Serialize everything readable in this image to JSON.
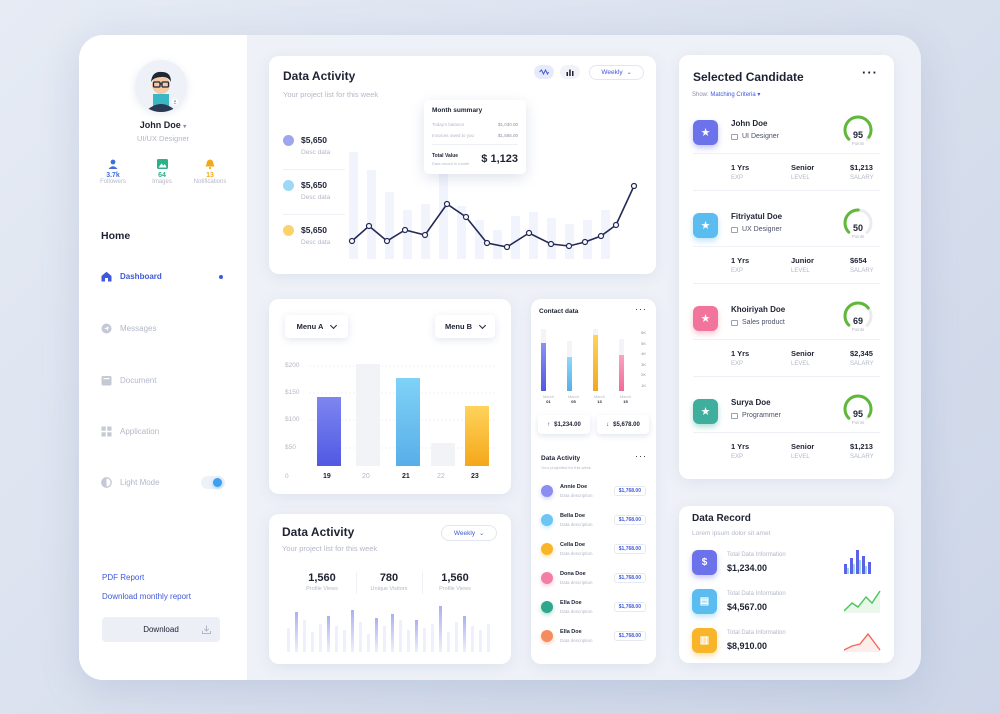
{
  "profile": {
    "name": "John Doe",
    "role": "UI/UX Designer"
  },
  "stats": [
    {
      "value": "3.7k",
      "label": "Followers",
      "icon": "user-icon",
      "color": "#3f6fd8"
    },
    {
      "value": "64",
      "label": "Images",
      "icon": "image-icon",
      "color": "#2bb08a"
    },
    {
      "value": "13",
      "label": "Notifications",
      "icon": "bell-icon",
      "color": "#f2a91b"
    }
  ],
  "nav": {
    "heading": "Home",
    "items": [
      {
        "label": "Dashboard"
      },
      {
        "label": "Messages"
      },
      {
        "label": "Document"
      },
      {
        "label": "Application"
      },
      {
        "label": "Light Mode"
      }
    ]
  },
  "footer": {
    "pdf": "PDF Report",
    "download_monthly": "Download monthly report",
    "download_btn": "Download"
  },
  "activity": {
    "title": "Data Activity",
    "subtitle": "Your project list for this week",
    "period": "Weekly",
    "items": [
      {
        "value": "$5,650",
        "label": "Desc data",
        "color": "#9ea6ef"
      },
      {
        "value": "$5,650",
        "label": "Desc data",
        "color": "#9fd8f5"
      },
      {
        "value": "$5,650",
        "label": "Desc data",
        "color": "#fbd36a"
      }
    ],
    "summary": {
      "title": "Month summary",
      "rows": [
        {
          "label": "Today's balance",
          "value": "$1,030.00"
        },
        {
          "label": "Invoices owed to you",
          "value": "$1,565.00"
        }
      ],
      "total_label": "Total Value",
      "total_sub": "Data record in month",
      "total_value": "$ 1,123"
    }
  },
  "menus": {
    "a": "Menu A",
    "b": "Menu B"
  },
  "bars_chart": {
    "y_ticks": [
      "$200",
      "$150",
      "$100",
      "$50"
    ],
    "x_ticks": [
      "0",
      "19",
      "20",
      "21",
      "22",
      "23"
    ]
  },
  "contact": {
    "title": "Contact data",
    "y_ticks": [
      "6K",
      "5K",
      "4K",
      "3K",
      "2K",
      "1K"
    ],
    "x_labels": [
      {
        "top": "March",
        "bottom": "01"
      },
      {
        "top": "March",
        "bottom": "05"
      },
      {
        "top": "March",
        "bottom": "13"
      },
      {
        "top": "March",
        "bottom": "15"
      }
    ],
    "up": "$1,234.00",
    "down": "$5,678.00"
  },
  "people": {
    "title": "Data Activity",
    "subtitle": "Your projecttist for this week",
    "rows": [
      {
        "name": "Annie Doe",
        "desc": "Data description",
        "amount": "$1,768.00",
        "color": "#8b8ef0"
      },
      {
        "name": "Bella Doe",
        "desc": "Data description",
        "amount": "$1,768.00",
        "color": "#6cc5f2"
      },
      {
        "name": "Cella Doe",
        "desc": "Data description",
        "amount": "$1,768.00",
        "color": "#f9b52a"
      },
      {
        "name": "Dona Doe",
        "desc": "Data description",
        "amount": "$1,768.00",
        "color": "#f47fa6"
      },
      {
        "name": "Ella Doe",
        "desc": "Data description",
        "amount": "$1,768.00",
        "color": "#2fa78f"
      },
      {
        "name": "Ella Doe",
        "desc": "Data description",
        "amount": "$1,768.00",
        "color": "#f58c5f"
      }
    ]
  },
  "views": {
    "title": "Data Activity",
    "subtitle": "Your project list for this week",
    "period": "Weekly",
    "stats": [
      {
        "value": "1,560",
        "label": "Profile Views"
      },
      {
        "value": "780",
        "label": "Unique Visitors"
      },
      {
        "value": "1,560",
        "label": "Profile Views"
      }
    ]
  },
  "candidates": {
    "title": "Selected Candidate",
    "show_label": "Show:",
    "criteria": "Matching Criteria",
    "list": [
      {
        "name": "John Doe",
        "role": "UI Designer",
        "score": "95",
        "score_label": "Points",
        "score_pct": 95,
        "exp": "1 Yrs",
        "level": "Senior",
        "salary": "$1,213",
        "color": "#6c73ea"
      },
      {
        "name": "Fitriyatul Doe",
        "role": "UX Designer",
        "score": "50",
        "score_label": "Points",
        "score_pct": 50,
        "exp": "1 Yrs",
        "level": "Junior",
        "salary": "$654",
        "color": "#5bbcf0"
      },
      {
        "name": "Khoiriyah Doe",
        "role": "Sales product",
        "score": "69",
        "score_label": "Points",
        "score_pct": 69,
        "exp": "1 Yrs",
        "level": "Senior",
        "salary": "$2,345",
        "color": "#f0749c"
      },
      {
        "name": "Surya Doe",
        "role": "Programmer",
        "score": "95",
        "score_label": "Points",
        "score_pct": 95,
        "exp": "1 Yrs",
        "level": "Senior",
        "salary": "$1,213",
        "color": "#3fae9c"
      }
    ],
    "col_exp": "EXP",
    "col_level": "LEVEL",
    "col_salary": "SALARY"
  },
  "record": {
    "title": "Data Record",
    "subtitle": "Lorem ipsum dolor sit amet",
    "items": [
      {
        "label": "Total Data Information",
        "value": "$1,234.00",
        "color": "#6c73ea",
        "icon": "dollar-icon"
      },
      {
        "label": "Total Data Information",
        "value": "$4,567.00",
        "color": "#5bbcf0",
        "icon": "money-icon"
      },
      {
        "label": "Total Data Information",
        "value": "$8,910.00",
        "color": "#f9b52a",
        "icon": "coins-icon"
      }
    ]
  }
}
